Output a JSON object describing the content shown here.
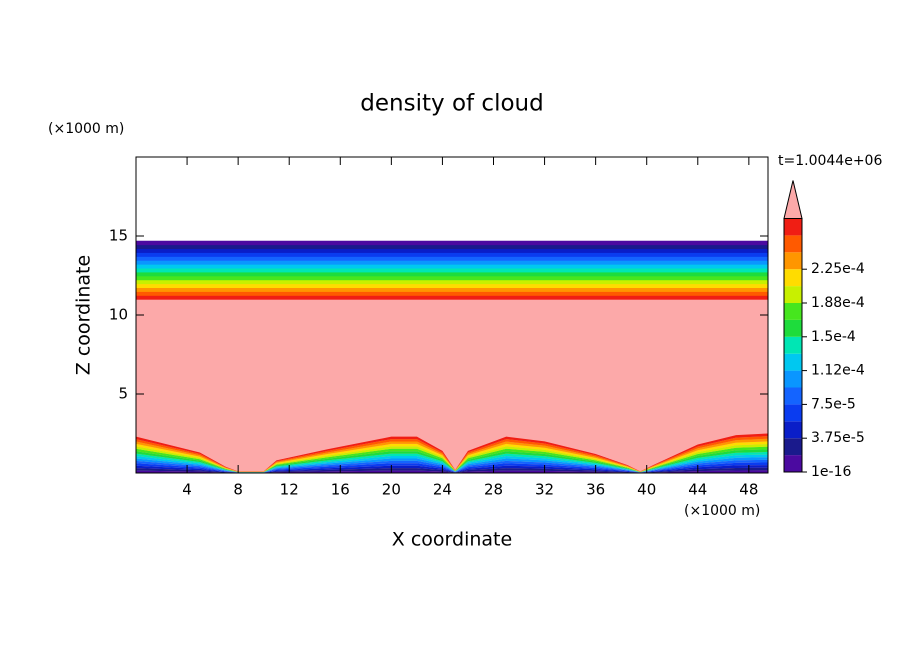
{
  "chart_data": {
    "type": "contour",
    "title": "density of cloud",
    "x_label": "X coordinate",
    "y_label": "Z coordinate",
    "x_unit": "(×1000 m)",
    "y_unit": "(×1000 m)",
    "time_label": "t=1.0044e+06",
    "xlim": [
      0,
      49.5
    ],
    "ylim": [
      0,
      20
    ],
    "xticks": [
      4,
      8,
      12,
      16,
      20,
      24,
      28,
      32,
      36,
      40,
      44,
      48
    ],
    "yticks": [
      5,
      10,
      15
    ],
    "cloud_layer": {
      "bottom": 11,
      "top": 14.7
    },
    "cloud_base": {
      "x": [
        0,
        5,
        7,
        8,
        10,
        11,
        15,
        20,
        22,
        24,
        25,
        26,
        29,
        32,
        36,
        38.5,
        39.5,
        40.5,
        44,
        47,
        49.5
      ],
      "z": [
        2.3,
        1.3,
        0.4,
        0.1,
        0.1,
        0.8,
        1.5,
        2.3,
        2.3,
        1.4,
        0.2,
        1.4,
        2.3,
        2.0,
        1.2,
        0.5,
        0.1,
        0.5,
        1.8,
        2.4,
        2.5
      ]
    },
    "colorbar": {
      "levels": [
        1e-16,
        1.875e-05,
        3.75e-05,
        5.625e-05,
        7.5e-05,
        9.375e-05,
        0.0001125,
        0.00013125,
        0.00015,
        0.00016875,
        0.0001875,
        0.00020625,
        0.000225,
        0.00024375,
        0.0002625
      ],
      "colors": [
        "#4b0aa0",
        "#1a1a8c",
        "#0a1ec8",
        "#0a3cf0",
        "#1464ff",
        "#0a96ff",
        "#00c8f0",
        "#00e6b4",
        "#1edc3c",
        "#46e61e",
        "#c8f000",
        "#ffdc00",
        "#ff9600",
        "#ff5a00",
        "#f01e14"
      ],
      "over_color": "#fca9a9",
      "ticks": [
        {
          "value": 1e-16,
          "label": "1e-16"
        },
        {
          "value": 3.75e-05,
          "label": "3.75e-5"
        },
        {
          "value": 7.5e-05,
          "label": "7.5e-5"
        },
        {
          "value": 0.0001125,
          "label": "1.12e-4"
        },
        {
          "value": 0.00015,
          "label": "1.5e-4"
        },
        {
          "value": 0.0001875,
          "label": "1.88e-4"
        },
        {
          "value": 0.000225,
          "label": "2.25e-4"
        }
      ]
    }
  }
}
